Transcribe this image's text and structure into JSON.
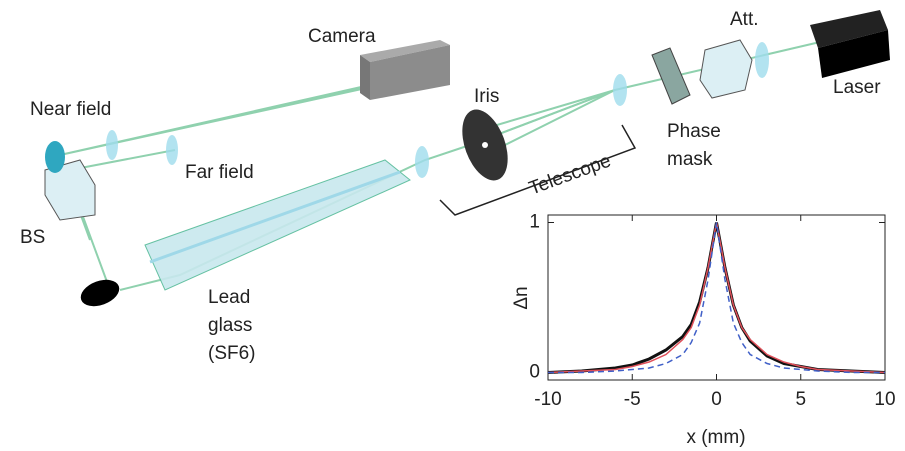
{
  "labels": {
    "camera": "Camera",
    "att": "Att.",
    "laser": "Laser",
    "near_field": "Near field",
    "iris": "Iris",
    "phase_mask": [
      "Phase",
      "mask"
    ],
    "far_field": "Far field",
    "telescope": "Telescope",
    "bs": "BS",
    "lead_glass": [
      "Lead",
      "glass",
      "(SF6)"
    ]
  },
  "chart_data": {
    "type": "line",
    "xlabel": "x (mm)",
    "ylabel": "Δn",
    "x": [
      -10,
      -8,
      -6,
      -5,
      -4,
      -3,
      -2,
      -1.5,
      -1,
      -0.5,
      0,
      0.5,
      1,
      1.5,
      2,
      3,
      4,
      5,
      6,
      8,
      10
    ],
    "xlim": [
      -10,
      10
    ],
    "ylim": [
      -0.05,
      1.05
    ],
    "xticks": [
      -10,
      -5,
      0,
      5,
      10
    ],
    "yticks": [
      0,
      1
    ],
    "series": [
      {
        "color": "#111111",
        "dash": false,
        "values": [
          0,
          0.01,
          0.03,
          0.05,
          0.09,
          0.15,
          0.24,
          0.32,
          0.47,
          0.7,
          1,
          0.7,
          0.45,
          0.3,
          0.21,
          0.11,
          0.06,
          0.04,
          0.02,
          0.01,
          0
        ]
      },
      {
        "color": "#e0505a",
        "dash": false,
        "values": [
          0,
          0.01,
          0.02,
          0.04,
          0.07,
          0.12,
          0.22,
          0.3,
          0.45,
          0.7,
          1,
          0.7,
          0.45,
          0.3,
          0.22,
          0.12,
          0.07,
          0.04,
          0.02,
          0.01,
          0
        ]
      },
      {
        "color": "#4060c8",
        "dash": true,
        "values": [
          0,
          0,
          0.01,
          0.02,
          0.03,
          0.06,
          0.12,
          0.2,
          0.33,
          0.62,
          1,
          0.62,
          0.33,
          0.2,
          0.12,
          0.06,
          0.03,
          0.02,
          0.01,
          0,
          0
        ]
      }
    ]
  }
}
